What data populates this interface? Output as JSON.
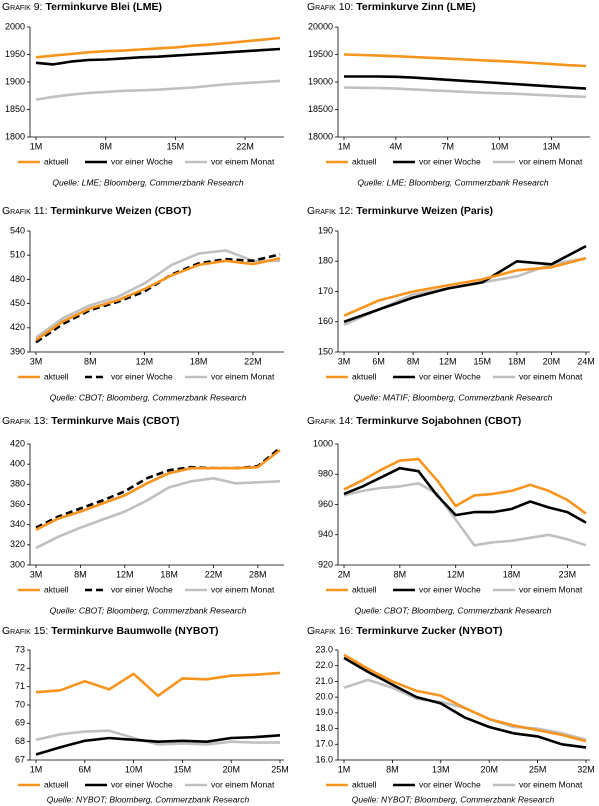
{
  "chart_data": [
    {
      "type": "line",
      "label": "Grafik 9:",
      "title": "Terminkurve Blei (LME)",
      "categories": [
        "1M",
        null,
        null,
        null,
        "8M",
        null,
        null,
        null,
        "15M",
        null,
        null,
        null,
        "22M",
        null,
        null
      ],
      "series": [
        {
          "name": "aktuell",
          "color": "#f7941d",
          "values": [
            1945,
            1948,
            1951,
            1954,
            1956,
            1957,
            1959,
            1961,
            1963,
            1966,
            1968,
            1971,
            1974,
            1977,
            1980
          ]
        },
        {
          "name": "vor einer Woche",
          "color": "#000000",
          "values": [
            1935,
            1932,
            1937,
            1940,
            1941,
            1943,
            1945,
            1946,
            1948,
            1950,
            1952,
            1954,
            1956,
            1958,
            1960
          ]
        },
        {
          "name": "vor einem Monat",
          "color": "#c0c0c0",
          "values": [
            1868,
            1873,
            1877,
            1880,
            1882,
            1884,
            1885,
            1886,
            1888,
            1890,
            1893,
            1896,
            1898,
            1900,
            1902
          ]
        }
      ],
      "ylim": [
        1800,
        2000
      ],
      "yticks": [
        1800,
        1850,
        1900,
        1950,
        2000
      ],
      "source": "Quelle: LME; Bloomberg, Commerzbank Research"
    },
    {
      "type": "line",
      "label": "Grafik 10:",
      "title": "Terminkurve Zinn (LME)",
      "categories": [
        "1M",
        null,
        null,
        "4M",
        null,
        null,
        "7M",
        null,
        null,
        "10M",
        null,
        null,
        "13M",
        null,
        null
      ],
      "series": [
        {
          "name": "aktuell",
          "color": "#f7941d",
          "values": [
            19500,
            19490,
            19480,
            19470,
            19455,
            19440,
            19425,
            19410,
            19395,
            19380,
            19365,
            19345,
            19325,
            19305,
            19290
          ]
        },
        {
          "name": "vor einer Woche",
          "color": "#000000",
          "values": [
            19100,
            19100,
            19100,
            19095,
            19080,
            19060,
            19040,
            19020,
            19000,
            18980,
            18960,
            18940,
            18920,
            18900,
            18880
          ]
        },
        {
          "name": "vor einem Monat",
          "color": "#c0c0c0",
          "values": [
            18900,
            18895,
            18890,
            18880,
            18865,
            18850,
            18835,
            18820,
            18805,
            18795,
            18785,
            18770,
            18755,
            18740,
            18730
          ]
        }
      ],
      "ylim": [
        18000,
        20000
      ],
      "yticks": [
        18000,
        18500,
        19000,
        19500,
        20000
      ],
      "source": "Quelle: LME; Bloomberg, Commerzbank Research"
    },
    {
      "type": "line",
      "label": "Grafik 11:",
      "title": "Terminkurve Weizen (CBOT)",
      "categories": [
        "3M",
        null,
        "8M",
        null,
        "12M",
        null,
        "18M",
        null,
        "22M",
        null
      ],
      "series": [
        {
          "name": "aktuell",
          "color": "#f7941d",
          "values": [
            405,
            428,
            444,
            454,
            468,
            485,
            498,
            503,
            499,
            506
          ]
        },
        {
          "name": "vor einer Woche",
          "color": "#000000",
          "dash": true,
          "values": [
            402,
            425,
            442,
            452,
            465,
            486,
            500,
            505,
            503,
            511
          ]
        },
        {
          "name": "vor einem Monat",
          "color": "#c0c0c0",
          "values": [
            408,
            432,
            448,
            458,
            475,
            498,
            512,
            516,
            503,
            503
          ]
        }
      ],
      "ylim": [
        390,
        540
      ],
      "yticks": [
        390,
        420,
        450,
        480,
        510,
        540
      ],
      "source": "Quelle: CBOT; Bloomberg, Commerzbank Research"
    },
    {
      "type": "line",
      "label": "Grafik 12:",
      "title": "Terminkurve Weizen (Paris)",
      "categories": [
        "3M",
        "6M",
        "8M",
        "12M",
        "15M",
        "18M",
        "20M",
        "24M"
      ],
      "series": [
        {
          "name": "aktuell",
          "color": "#f7941d",
          "values": [
            162,
            167,
            170,
            172,
            174,
            177,
            178,
            181
          ]
        },
        {
          "name": "vor einer Woche",
          "color": "#000000",
          "values": [
            160,
            164,
            168,
            171,
            173,
            180,
            179,
            185
          ]
        },
        {
          "name": "vor einem Monat",
          "color": "#c0c0c0",
          "values": [
            159,
            164,
            169,
            171,
            173,
            175,
            179,
            181
          ]
        }
      ],
      "ylim": [
        150,
        190
      ],
      "yticks": [
        150,
        160,
        170,
        180,
        190
      ],
      "source": "Quelle: MATIF; Bloomberg, Commerzbank Research"
    },
    {
      "type": "line",
      "label": "Grafik 13:",
      "title": "Terminkurve Mais (CBOT)",
      "categories": [
        "3M",
        null,
        "8M",
        null,
        "12M",
        null,
        "18M",
        null,
        "22M",
        null,
        "28M",
        null
      ],
      "series": [
        {
          "name": "aktuell",
          "color": "#f7941d",
          "values": [
            335,
            346,
            353,
            361,
            369,
            381,
            391,
            396,
            396,
            396,
            397,
            414
          ]
        },
        {
          "name": "vor einer Woche",
          "color": "#000000",
          "dash": true,
          "values": [
            337,
            348,
            356,
            364,
            373,
            386,
            394,
            397,
            396,
            396,
            398,
            416
          ]
        },
        {
          "name": "vor einem Monat",
          "color": "#c0c0c0",
          "values": [
            317,
            328,
            337,
            345,
            353,
            364,
            377,
            383,
            386,
            381,
            382,
            383
          ]
        }
      ],
      "ylim": [
        300,
        420
      ],
      "yticks": [
        300,
        320,
        340,
        360,
        380,
        400,
        420
      ],
      "source": "Quelle: CBOT; Bloomberg, Commerzbank Research"
    },
    {
      "type": "line",
      "label": "Grafik 14:",
      "title": "Terminkurve Sojabohnen (CBOT)",
      "categories": [
        "2M",
        null,
        null,
        "8M",
        null,
        null,
        "12M",
        null,
        null,
        "18M",
        null,
        null,
        "23M",
        null
      ],
      "series": [
        {
          "name": "aktuell",
          "color": "#f7941d",
          "values": [
            970,
            976,
            983,
            989,
            990,
            976,
            959,
            966,
            967,
            969,
            973,
            969,
            963,
            954
          ]
        },
        {
          "name": "vor einer Woche",
          "color": "#000000",
          "values": [
            967,
            972,
            978,
            984,
            982,
            966,
            953,
            955,
            955,
            957,
            962,
            958,
            955,
            948
          ]
        },
        {
          "name": "vor einem Monat",
          "color": "#c0c0c0",
          "values": [
            966,
            969,
            971,
            972,
            974,
            967,
            950,
            933,
            935,
            936,
            938,
            940,
            937,
            933
          ]
        }
      ],
      "ylim": [
        920,
        1000
      ],
      "yticks": [
        920,
        940,
        960,
        980,
        1000
      ],
      "source": "Quelle: CBOT; Bloomberg, Commerzbank Research"
    },
    {
      "type": "line",
      "label": "Grafik 15:",
      "title": "Terminkurve Baumwolle (NYBOT)",
      "categories": [
        "1M",
        null,
        "6M",
        null,
        "10M",
        null,
        "15M",
        null,
        "20M",
        null,
        "25M"
      ],
      "series": [
        {
          "name": "aktuell",
          "color": "#f7941d",
          "values": [
            70.7,
            70.8,
            71.3,
            70.85,
            71.7,
            70.5,
            71.45,
            71.4,
            71.6,
            71.65,
            71.75
          ]
        },
        {
          "name": "vor einer Woche",
          "color": "#000000",
          "values": [
            67.3,
            67.7,
            68.05,
            68.2,
            68.1,
            68.0,
            68.05,
            68.0,
            68.2,
            68.25,
            68.35
          ]
        },
        {
          "name": "vor einem Monat",
          "color": "#c0c0c0",
          "values": [
            68.1,
            68.4,
            68.55,
            68.6,
            68.2,
            67.85,
            67.9,
            67.85,
            68.0,
            67.95,
            67.95
          ]
        }
      ],
      "ylim": [
        67,
        73
      ],
      "yticks": [
        67,
        68,
        69,
        70,
        71,
        72,
        73
      ],
      "source": "Quelle: NYBOT; Bloomberg, Commerzbank Research"
    },
    {
      "type": "line",
      "label": "Grafik 16:",
      "title": "Terminkurve Zucker (NYBOT)",
      "categories": [
        "1M",
        null,
        "8M",
        null,
        "13M",
        null,
        "20M",
        null,
        "25M",
        null,
        "32M"
      ],
      "series": [
        {
          "name": "aktuell",
          "color": "#f7941d",
          "values": [
            22.7,
            21.8,
            21.0,
            20.4,
            20.1,
            19.3,
            18.6,
            18.2,
            17.9,
            17.6,
            17.2
          ]
        },
        {
          "name": "vor einer Woche",
          "color": "#000000",
          "values": [
            22.5,
            21.6,
            20.8,
            20.0,
            19.6,
            18.7,
            18.1,
            17.7,
            17.5,
            17.0,
            16.8
          ]
        },
        {
          "name": "vor einem Monat",
          "color": "#c0c0c0",
          "values": [
            20.6,
            21.1,
            20.6,
            19.9,
            19.7,
            19.3,
            18.6,
            18.1,
            18.0,
            17.7,
            17.3
          ]
        }
      ],
      "ylim": [
        16,
        23
      ],
      "yticks": [
        {
          "value": 16,
          "label": "16.0"
        },
        {
          "value": 17,
          "label": "17.0"
        },
        {
          "value": 18,
          "label": "18.0"
        },
        {
          "value": 19,
          "label": "19.0"
        },
        {
          "value": 20,
          "label": "20.0"
        },
        {
          "value": 21,
          "label": "21.0"
        },
        {
          "value": 22,
          "label": "22.0"
        },
        {
          "value": 23,
          "label": "23.0"
        }
      ],
      "source": "Quelle: NYBOT; Bloomberg, Commerzbank Research"
    }
  ]
}
